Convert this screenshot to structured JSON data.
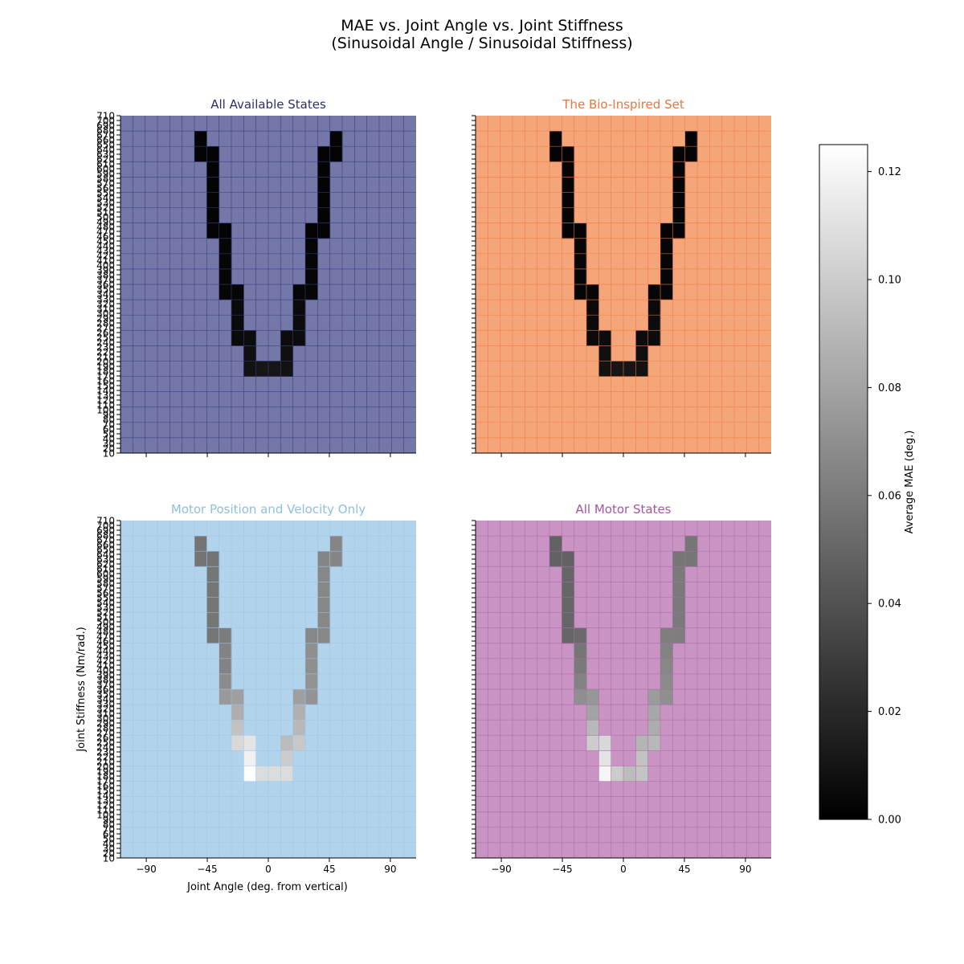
{
  "figure": {
    "title_line1": "MAE vs. Joint Angle vs. Joint Stiffness",
    "title_line2": "(Sinusoidal Angle / Sinusoidal Stiffness)",
    "xlabel": "Joint Angle (deg. from vertical)",
    "ylabel": "Joint Stiffness (Nm/rad.)",
    "colorbar_label": "Average MAE (deg.)"
  },
  "chart_data": {
    "type": "heatmap",
    "xlim": [
      -109,
      109
    ],
    "x_ticks": [
      -90,
      -45,
      0,
      45,
      90
    ],
    "x_tick_labels": [
      "−90",
      "−45",
      "0",
      "45",
      "90"
    ],
    "ylim": [
      10,
      710
    ],
    "y_ticks": [
      10,
      20,
      30,
      40,
      50,
      60,
      70,
      80,
      90,
      100,
      110,
      120,
      130,
      140,
      150,
      160,
      170,
      180,
      190,
      200,
      210,
      220,
      230,
      240,
      250,
      260,
      270,
      280,
      290,
      300,
      310,
      320,
      330,
      340,
      350,
      360,
      370,
      380,
      390,
      400,
      410,
      420,
      430,
      440,
      450,
      460,
      470,
      480,
      490,
      500,
      510,
      520,
      530,
      540,
      550,
      560,
      570,
      580,
      590,
      600,
      610,
      620,
      630,
      640,
      650,
      660,
      670,
      680,
      690,
      700,
      710
    ],
    "grid_cols": 24,
    "grid_rows": 22,
    "colorbar": {
      "min": 0.0,
      "max": 0.125,
      "ticks": [
        0.0,
        0.02,
        0.04,
        0.06,
        0.08,
        0.1,
        0.12
      ],
      "tick_labels": [
        "0.00",
        "0.02",
        "0.04",
        "0.06",
        "0.08",
        "0.10",
        "0.12"
      ],
      "colormap": "gray"
    },
    "panels": [
      {
        "title": "All Available States",
        "title_color": "#2b2f6b",
        "background": "#7478a8",
        "grid_color": "#3a3f7e",
        "cells": [
          {
            "col": 6,
            "row": 1,
            "v": 0.002
          },
          {
            "col": 17,
            "row": 1,
            "v": 0.002
          },
          {
            "col": 6,
            "row": 2,
            "v": 0.002
          },
          {
            "col": 7,
            "row": 2,
            "v": 0.002
          },
          {
            "col": 16,
            "row": 2,
            "v": 0.002
          },
          {
            "col": 17,
            "row": 2,
            "v": 0.002
          },
          {
            "col": 7,
            "row": 3,
            "v": 0.002
          },
          {
            "col": 16,
            "row": 3,
            "v": 0.002
          },
          {
            "col": 7,
            "row": 4,
            "v": 0.002
          },
          {
            "col": 16,
            "row": 4,
            "v": 0.002
          },
          {
            "col": 7,
            "row": 5,
            "v": 0.002
          },
          {
            "col": 16,
            "row": 5,
            "v": 0.002
          },
          {
            "col": 7,
            "row": 6,
            "v": 0.002
          },
          {
            "col": 16,
            "row": 6,
            "v": 0.002
          },
          {
            "col": 7,
            "row": 7,
            "v": 0.002
          },
          {
            "col": 8,
            "row": 7,
            "v": 0.002
          },
          {
            "col": 15,
            "row": 7,
            "v": 0.002
          },
          {
            "col": 16,
            "row": 7,
            "v": 0.002
          },
          {
            "col": 8,
            "row": 8,
            "v": 0.003
          },
          {
            "col": 15,
            "row": 8,
            "v": 0.003
          },
          {
            "col": 8,
            "row": 9,
            "v": 0.003
          },
          {
            "col": 15,
            "row": 9,
            "v": 0.003
          },
          {
            "col": 8,
            "row": 10,
            "v": 0.003
          },
          {
            "col": 15,
            "row": 10,
            "v": 0.003
          },
          {
            "col": 8,
            "row": 11,
            "v": 0.003
          },
          {
            "col": 9,
            "row": 11,
            "v": 0.003
          },
          {
            "col": 14,
            "row": 11,
            "v": 0.003
          },
          {
            "col": 15,
            "row": 11,
            "v": 0.003
          },
          {
            "col": 9,
            "row": 12,
            "v": 0.005
          },
          {
            "col": 14,
            "row": 12,
            "v": 0.005
          },
          {
            "col": 9,
            "row": 13,
            "v": 0.005
          },
          {
            "col": 14,
            "row": 13,
            "v": 0.006
          },
          {
            "col": 9,
            "row": 14,
            "v": 0.005
          },
          {
            "col": 10,
            "row": 14,
            "v": 0.006
          },
          {
            "col": 13,
            "row": 14,
            "v": 0.006
          },
          {
            "col": 14,
            "row": 14,
            "v": 0.006
          },
          {
            "col": 10,
            "row": 15,
            "v": 0.008
          },
          {
            "col": 13,
            "row": 15,
            "v": 0.008
          },
          {
            "col": 10,
            "row": 16,
            "v": 0.009
          },
          {
            "col": 11,
            "row": 16,
            "v": 0.011
          },
          {
            "col": 12,
            "row": 16,
            "v": 0.011
          },
          {
            "col": 13,
            "row": 16,
            "v": 0.009
          }
        ]
      },
      {
        "title": "The Bio-Inspired Set",
        "title_color": "#e8763d",
        "background": "#f5a57a",
        "grid_color": "#ee7f45",
        "cells": [
          {
            "col": 6,
            "row": 1,
            "v": 0.002
          },
          {
            "col": 17,
            "row": 1,
            "v": 0.002
          },
          {
            "col": 6,
            "row": 2,
            "v": 0.002
          },
          {
            "col": 7,
            "row": 2,
            "v": 0.002
          },
          {
            "col": 16,
            "row": 2,
            "v": 0.002
          },
          {
            "col": 17,
            "row": 2,
            "v": 0.002
          },
          {
            "col": 7,
            "row": 3,
            "v": 0.002
          },
          {
            "col": 16,
            "row": 3,
            "v": 0.002
          },
          {
            "col": 7,
            "row": 4,
            "v": 0.002
          },
          {
            "col": 16,
            "row": 4,
            "v": 0.002
          },
          {
            "col": 7,
            "row": 5,
            "v": 0.002
          },
          {
            "col": 16,
            "row": 5,
            "v": 0.002
          },
          {
            "col": 7,
            "row": 6,
            "v": 0.002
          },
          {
            "col": 16,
            "row": 6,
            "v": 0.002
          },
          {
            "col": 7,
            "row": 7,
            "v": 0.002
          },
          {
            "col": 8,
            "row": 7,
            "v": 0.002
          },
          {
            "col": 15,
            "row": 7,
            "v": 0.002
          },
          {
            "col": 16,
            "row": 7,
            "v": 0.002
          },
          {
            "col": 8,
            "row": 8,
            "v": 0.003
          },
          {
            "col": 15,
            "row": 8,
            "v": 0.003
          },
          {
            "col": 8,
            "row": 9,
            "v": 0.003
          },
          {
            "col": 15,
            "row": 9,
            "v": 0.003
          },
          {
            "col": 8,
            "row": 10,
            "v": 0.003
          },
          {
            "col": 15,
            "row": 10,
            "v": 0.003
          },
          {
            "col": 8,
            "row": 11,
            "v": 0.003
          },
          {
            "col": 9,
            "row": 11,
            "v": 0.003
          },
          {
            "col": 14,
            "row": 11,
            "v": 0.003
          },
          {
            "col": 15,
            "row": 11,
            "v": 0.003
          },
          {
            "col": 9,
            "row": 12,
            "v": 0.005
          },
          {
            "col": 14,
            "row": 12,
            "v": 0.005
          },
          {
            "col": 9,
            "row": 13,
            "v": 0.005
          },
          {
            "col": 14,
            "row": 13,
            "v": 0.006
          },
          {
            "col": 9,
            "row": 14,
            "v": 0.005
          },
          {
            "col": 10,
            "row": 14,
            "v": 0.006
          },
          {
            "col": 13,
            "row": 14,
            "v": 0.006
          },
          {
            "col": 14,
            "row": 14,
            "v": 0.006
          },
          {
            "col": 10,
            "row": 15,
            "v": 0.008
          },
          {
            "col": 13,
            "row": 15,
            "v": 0.008
          },
          {
            "col": 10,
            "row": 16,
            "v": 0.009
          },
          {
            "col": 11,
            "row": 16,
            "v": 0.011
          },
          {
            "col": 12,
            "row": 16,
            "v": 0.011
          },
          {
            "col": 13,
            "row": 16,
            "v": 0.009
          }
        ]
      },
      {
        "title": "Motor Position and Velocity Only",
        "title_color": "#8fbfe0",
        "background": "#b2d3ec",
        "grid_color": "#9dc5e8",
        "cells": [
          {
            "col": 6,
            "row": 1,
            "v": 0.057
          },
          {
            "col": 17,
            "row": 1,
            "v": 0.065
          },
          {
            "col": 6,
            "row": 2,
            "v": 0.057
          },
          {
            "col": 7,
            "row": 2,
            "v": 0.057
          },
          {
            "col": 16,
            "row": 2,
            "v": 0.065
          },
          {
            "col": 17,
            "row": 2,
            "v": 0.065
          },
          {
            "col": 7,
            "row": 3,
            "v": 0.058
          },
          {
            "col": 16,
            "row": 3,
            "v": 0.066
          },
          {
            "col": 7,
            "row": 4,
            "v": 0.058
          },
          {
            "col": 16,
            "row": 4,
            "v": 0.066
          },
          {
            "col": 7,
            "row": 5,
            "v": 0.058
          },
          {
            "col": 16,
            "row": 5,
            "v": 0.066
          },
          {
            "col": 7,
            "row": 6,
            "v": 0.058
          },
          {
            "col": 16,
            "row": 6,
            "v": 0.066
          },
          {
            "col": 7,
            "row": 7,
            "v": 0.058
          },
          {
            "col": 8,
            "row": 7,
            "v": 0.061
          },
          {
            "col": 15,
            "row": 7,
            "v": 0.066
          },
          {
            "col": 16,
            "row": 7,
            "v": 0.066
          },
          {
            "col": 8,
            "row": 8,
            "v": 0.064
          },
          {
            "col": 15,
            "row": 8,
            "v": 0.07
          },
          {
            "col": 8,
            "row": 9,
            "v": 0.064
          },
          {
            "col": 15,
            "row": 9,
            "v": 0.07
          },
          {
            "col": 8,
            "row": 10,
            "v": 0.068
          },
          {
            "col": 15,
            "row": 10,
            "v": 0.072
          },
          {
            "col": 8,
            "row": 11,
            "v": 0.075
          },
          {
            "col": 9,
            "row": 11,
            "v": 0.078
          },
          {
            "col": 14,
            "row": 11,
            "v": 0.078
          },
          {
            "col": 15,
            "row": 11,
            "v": 0.072
          },
          {
            "col": 9,
            "row": 12,
            "v": 0.085
          },
          {
            "col": 14,
            "row": 12,
            "v": 0.086
          },
          {
            "col": 9,
            "row": 13,
            "v": 0.095
          },
          {
            "col": 14,
            "row": 13,
            "v": 0.09
          },
          {
            "col": 9,
            "row": 14,
            "v": 0.106
          },
          {
            "col": 10,
            "row": 14,
            "v": 0.112
          },
          {
            "col": 13,
            "row": 14,
            "v": 0.092
          },
          {
            "col": 14,
            "row": 14,
            "v": 0.098
          },
          {
            "col": 10,
            "row": 15,
            "v": 0.118
          },
          {
            "col": 13,
            "row": 15,
            "v": 0.1
          },
          {
            "col": 10,
            "row": 16,
            "v": 0.125
          },
          {
            "col": 11,
            "row": 16,
            "v": 0.108
          },
          {
            "col": 12,
            "row": 16,
            "v": 0.108
          },
          {
            "col": 13,
            "row": 16,
            "v": 0.108
          }
        ]
      },
      {
        "title": "All Motor States",
        "title_color": "#a655a1",
        "background": "#c993c4",
        "grid_color": "#a86da7",
        "cells": [
          {
            "col": 6,
            "row": 1,
            "v": 0.048
          },
          {
            "col": 17,
            "row": 1,
            "v": 0.058
          },
          {
            "col": 6,
            "row": 2,
            "v": 0.048
          },
          {
            "col": 7,
            "row": 2,
            "v": 0.048
          },
          {
            "col": 16,
            "row": 2,
            "v": 0.058
          },
          {
            "col": 17,
            "row": 2,
            "v": 0.058
          },
          {
            "col": 7,
            "row": 3,
            "v": 0.05
          },
          {
            "col": 16,
            "row": 3,
            "v": 0.06
          },
          {
            "col": 7,
            "row": 4,
            "v": 0.05
          },
          {
            "col": 16,
            "row": 4,
            "v": 0.06
          },
          {
            "col": 7,
            "row": 5,
            "v": 0.05
          },
          {
            "col": 16,
            "row": 5,
            "v": 0.06
          },
          {
            "col": 7,
            "row": 6,
            "v": 0.05
          },
          {
            "col": 16,
            "row": 6,
            "v": 0.06
          },
          {
            "col": 7,
            "row": 7,
            "v": 0.05
          },
          {
            "col": 8,
            "row": 7,
            "v": 0.052
          },
          {
            "col": 15,
            "row": 7,
            "v": 0.062
          },
          {
            "col": 16,
            "row": 7,
            "v": 0.062
          },
          {
            "col": 8,
            "row": 8,
            "v": 0.058
          },
          {
            "col": 15,
            "row": 8,
            "v": 0.064
          },
          {
            "col": 8,
            "row": 9,
            "v": 0.06
          },
          {
            "col": 15,
            "row": 9,
            "v": 0.066
          },
          {
            "col": 8,
            "row": 10,
            "v": 0.064
          },
          {
            "col": 15,
            "row": 10,
            "v": 0.068
          },
          {
            "col": 8,
            "row": 11,
            "v": 0.07
          },
          {
            "col": 9,
            "row": 11,
            "v": 0.074
          },
          {
            "col": 14,
            "row": 11,
            "v": 0.076
          },
          {
            "col": 15,
            "row": 11,
            "v": 0.07
          },
          {
            "col": 9,
            "row": 12,
            "v": 0.08
          },
          {
            "col": 14,
            "row": 12,
            "v": 0.082
          },
          {
            "col": 9,
            "row": 13,
            "v": 0.09
          },
          {
            "col": 14,
            "row": 13,
            "v": 0.085
          },
          {
            "col": 9,
            "row": 14,
            "v": 0.1
          },
          {
            "col": 10,
            "row": 14,
            "v": 0.106
          },
          {
            "col": 13,
            "row": 14,
            "v": 0.088
          },
          {
            "col": 14,
            "row": 14,
            "v": 0.09
          },
          {
            "col": 10,
            "row": 15,
            "v": 0.112
          },
          {
            "col": 13,
            "row": 15,
            "v": 0.095
          },
          {
            "col": 10,
            "row": 16,
            "v": 0.12
          },
          {
            "col": 11,
            "row": 16,
            "v": 0.1
          },
          {
            "col": 12,
            "row": 16,
            "v": 0.092
          },
          {
            "col": 13,
            "row": 16,
            "v": 0.096
          }
        ]
      }
    ]
  }
}
